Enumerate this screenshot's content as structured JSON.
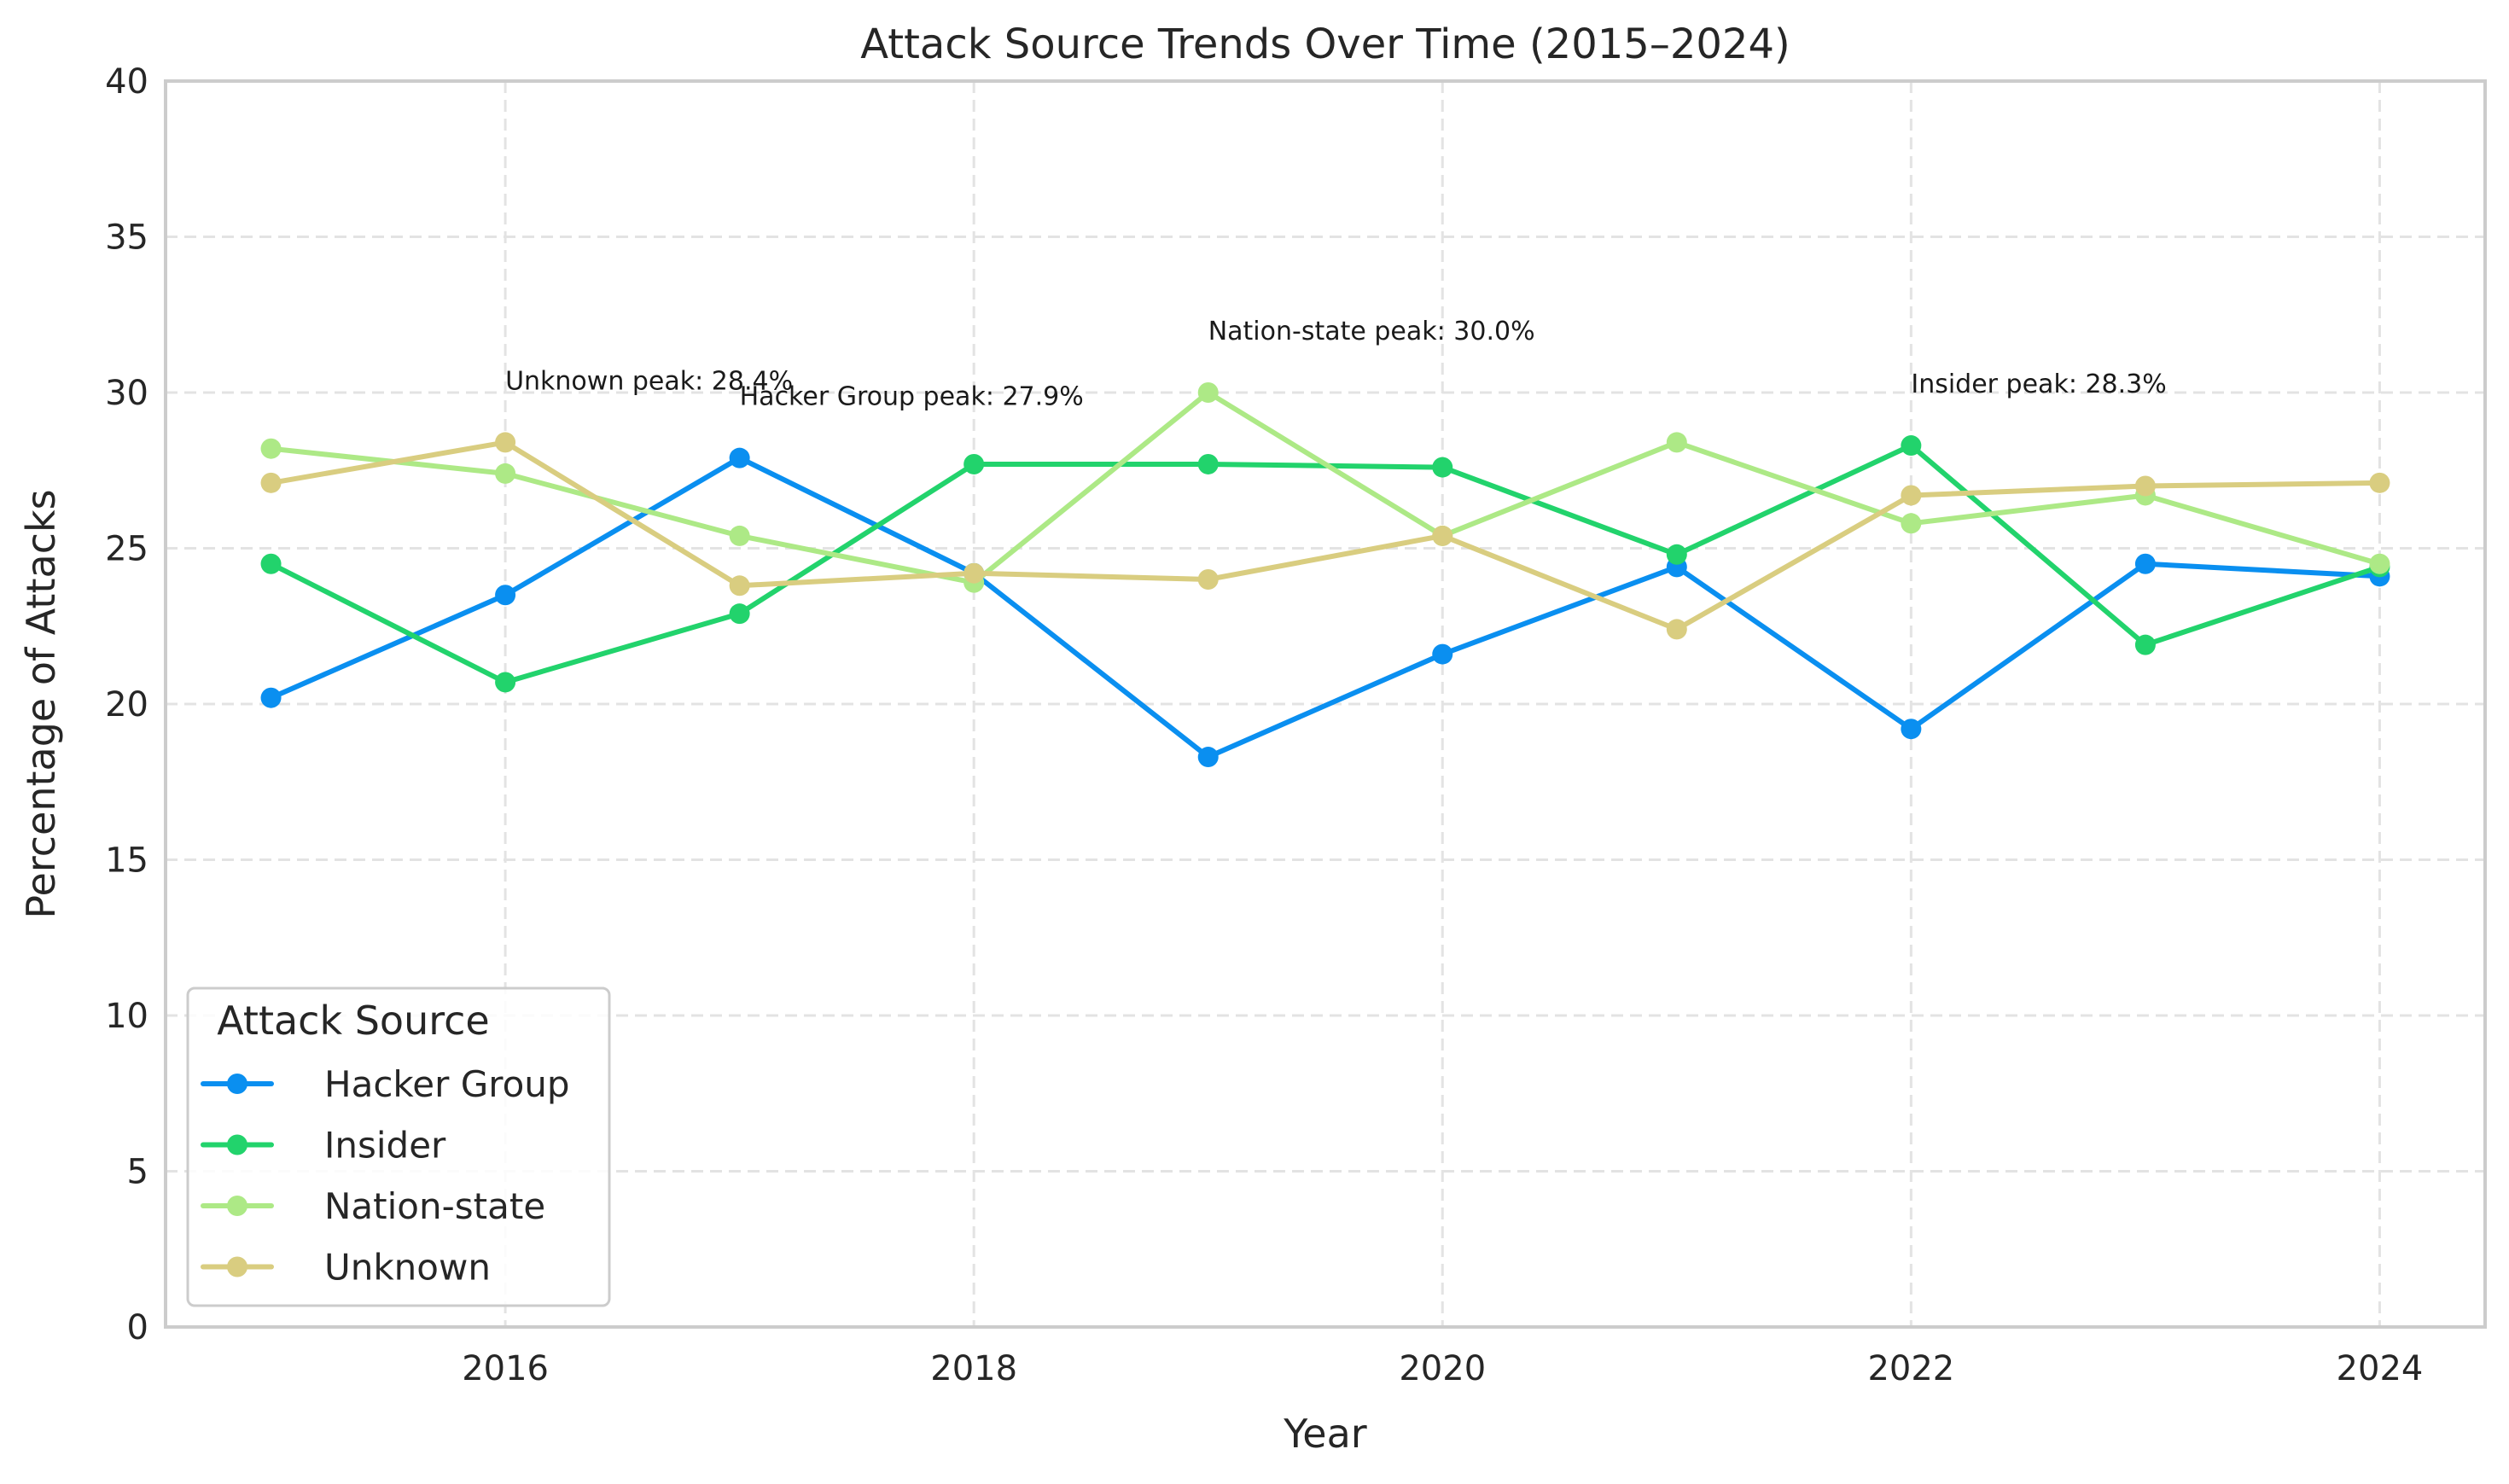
{
  "chart_data": {
    "type": "line",
    "title": "Attack Source Trends Over Time (2015–2024)",
    "xlabel": "Year",
    "ylabel": "Percentage of Attacks",
    "x": [
      2015,
      2016,
      2017,
      2018,
      2019,
      2020,
      2021,
      2022,
      2023,
      2024
    ],
    "xlim": [
      2014.55,
      2024.45
    ],
    "ylim": [
      0,
      40
    ],
    "x_ticks": [
      "2016",
      "2018",
      "2020",
      "2022",
      "2024"
    ],
    "y_ticks": [
      "0",
      "5",
      "10",
      "15",
      "20",
      "25",
      "30",
      "35",
      "40"
    ],
    "grid": true,
    "legend": {
      "title": "Attack Source",
      "placement": "lower-left"
    },
    "series": [
      {
        "name": "Hacker Group",
        "color": "#0a8ff0",
        "values": [
          20.2,
          23.5,
          27.9,
          24.2,
          18.3,
          21.6,
          24.4,
          19.2,
          24.5,
          24.1
        ]
      },
      {
        "name": "Insider",
        "color": "#22d36c",
        "values": [
          24.5,
          20.7,
          22.9,
          27.7,
          27.7,
          27.6,
          24.8,
          28.3,
          21.9,
          24.4
        ]
      },
      {
        "name": "Nation-state",
        "color": "#ade986",
        "values": [
          28.2,
          27.4,
          25.4,
          23.9,
          30.0,
          25.4,
          28.4,
          25.8,
          26.7,
          24.5
        ]
      },
      {
        "name": "Unknown",
        "color": "#d9cd80",
        "values": [
          27.1,
          28.4,
          23.8,
          24.2,
          24.0,
          25.4,
          22.4,
          26.7,
          27.0,
          27.1
        ]
      }
    ],
    "annotations": [
      {
        "text": "Unknown peak: 28.4%",
        "x": 2016,
        "y": 30.1
      },
      {
        "text": "Hacker Group peak: 27.9%",
        "x": 2017,
        "y": 29.6
      },
      {
        "text": "Nation-state peak: 30.0%",
        "x": 2019,
        "y": 31.7
      },
      {
        "text": "Insider peak: 28.3%",
        "x": 2022,
        "y": 30.0
      }
    ]
  }
}
